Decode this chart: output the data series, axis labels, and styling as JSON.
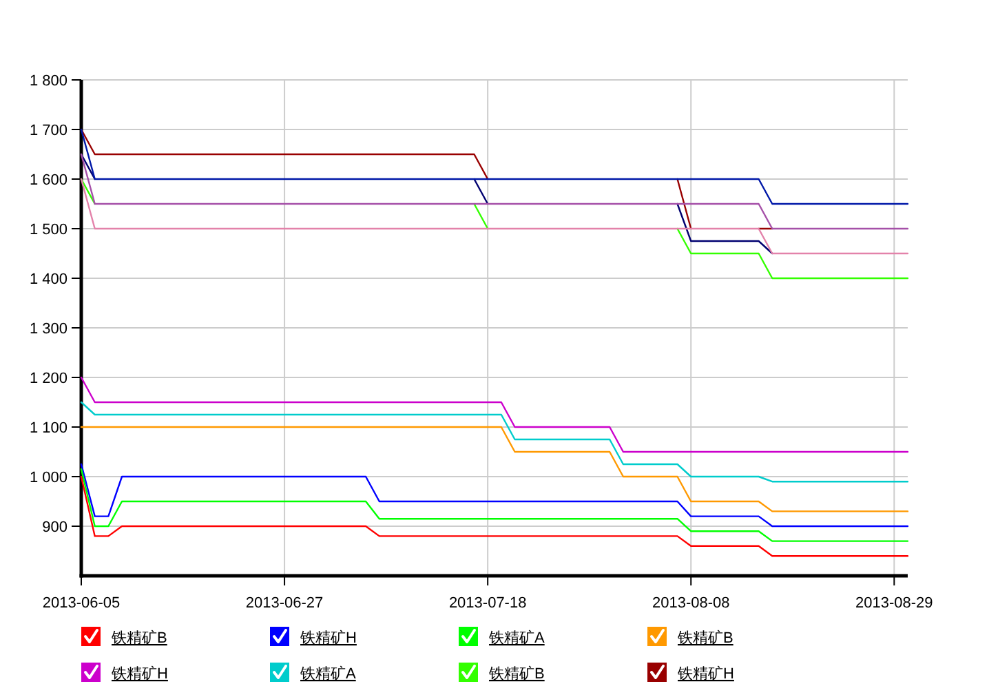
{
  "chart_data": {
    "type": "line",
    "legend": "bottom",
    "grid": true,
    "categories": [
      "2013-06-05",
      null,
      null,
      null,
      null,
      null,
      null,
      null,
      null,
      null,
      null,
      null,
      null,
      null,
      null,
      "2013-06-27",
      null,
      null,
      null,
      null,
      null,
      null,
      null,
      null,
      null,
      null,
      null,
      null,
      null,
      null,
      "2013-07-18",
      null,
      null,
      null,
      null,
      null,
      null,
      null,
      null,
      null,
      null,
      null,
      null,
      null,
      null,
      "2013-08-08",
      null,
      null,
      null,
      null,
      null,
      null,
      null,
      null,
      null,
      null,
      null,
      null,
      null,
      null,
      "2013-08-29",
      null
    ],
    "ylim": [
      800,
      1800
    ],
    "yticks": [
      900,
      {
        "value": 1000,
        "label": "1 000"
      },
      {
        "value": 1100,
        "label": "1 100"
      },
      {
        "value": 1200,
        "label": "1 200"
      },
      {
        "value": 1300,
        "label": "1 300"
      },
      {
        "value": 1400,
        "label": "1 400"
      },
      {
        "value": 1500,
        "label": "1 500"
      },
      {
        "value": 1600,
        "label": "1 600"
      },
      {
        "value": 1700,
        "label": "1 700"
      },
      {
        "value": 1800,
        "label": "1 800"
      }
    ],
    "series": [
      {
        "name": "铁精矿B",
        "color": "#ff0000",
        "values": [
          1000,
          880,
          880,
          900,
          900,
          900,
          900,
          900,
          900,
          900,
          900,
          900,
          900,
          900,
          900,
          900,
          900,
          900,
          900,
          900,
          900,
          900,
          880,
          880,
          880,
          880,
          880,
          880,
          880,
          880,
          880,
          880,
          880,
          880,
          880,
          880,
          880,
          880,
          880,
          880,
          880,
          880,
          880,
          880,
          880,
          860,
          860,
          860,
          860,
          860,
          860,
          840,
          840,
          840,
          840,
          840,
          840,
          840,
          840,
          840,
          840,
          840
        ]
      },
      {
        "name": "铁精矿H",
        "color": "#0000ff",
        "values": [
          1025,
          920,
          920,
          1000,
          1000,
          1000,
          1000,
          1000,
          1000,
          1000,
          1000,
          1000,
          1000,
          1000,
          1000,
          1000,
          1000,
          1000,
          1000,
          1000,
          1000,
          1000,
          950,
          950,
          950,
          950,
          950,
          950,
          950,
          950,
          950,
          950,
          950,
          950,
          950,
          950,
          950,
          950,
          950,
          950,
          950,
          950,
          950,
          950,
          950,
          920,
          920,
          920,
          920,
          920,
          920,
          900,
          900,
          900,
          900,
          900,
          900,
          900,
          900,
          900,
          900,
          900
        ]
      },
      {
        "name": "铁精矿A",
        "color": "#00ff00",
        "values": [
          1015,
          900,
          900,
          950,
          950,
          950,
          950,
          950,
          950,
          950,
          950,
          950,
          950,
          950,
          950,
          950,
          950,
          950,
          950,
          950,
          950,
          950,
          915,
          915,
          915,
          915,
          915,
          915,
          915,
          915,
          915,
          915,
          915,
          915,
          915,
          915,
          915,
          915,
          915,
          915,
          915,
          915,
          915,
          915,
          915,
          890,
          890,
          890,
          890,
          890,
          890,
          870,
          870,
          870,
          870,
          870,
          870,
          870,
          870,
          870,
          870,
          870
        ]
      },
      {
        "name": "铁精矿B",
        "color": "#ff9900",
        "values": [
          1100,
          1100,
          1100,
          1100,
          1100,
          1100,
          1100,
          1100,
          1100,
          1100,
          1100,
          1100,
          1100,
          1100,
          1100,
          1100,
          1100,
          1100,
          1100,
          1100,
          1100,
          1100,
          1100,
          1100,
          1100,
          1100,
          1100,
          1100,
          1100,
          1100,
          1100,
          1100,
          1050,
          1050,
          1050,
          1050,
          1050,
          1050,
          1050,
          1050,
          1000,
          1000,
          1000,
          1000,
          1000,
          950,
          950,
          950,
          950,
          950,
          950,
          930,
          930,
          930,
          930,
          930,
          930,
          930,
          930,
          930,
          930,
          930
        ]
      },
      {
        "name": "铁精矿H",
        "color": "#cc00cc",
        "values": [
          1200,
          1150,
          1150,
          1150,
          1150,
          1150,
          1150,
          1150,
          1150,
          1150,
          1150,
          1150,
          1150,
          1150,
          1150,
          1150,
          1150,
          1150,
          1150,
          1150,
          1150,
          1150,
          1150,
          1150,
          1150,
          1150,
          1150,
          1150,
          1150,
          1150,
          1150,
          1150,
          1100,
          1100,
          1100,
          1100,
          1100,
          1100,
          1100,
          1100,
          1050,
          1050,
          1050,
          1050,
          1050,
          1050,
          1050,
          1050,
          1050,
          1050,
          1050,
          1050,
          1050,
          1050,
          1050,
          1050,
          1050,
          1050,
          1050,
          1050,
          1050,
          1050
        ]
      },
      {
        "name": "铁精矿A",
        "color": "#00cccc",
        "values": [
          1150,
          1125,
          1125,
          1125,
          1125,
          1125,
          1125,
          1125,
          1125,
          1125,
          1125,
          1125,
          1125,
          1125,
          1125,
          1125,
          1125,
          1125,
          1125,
          1125,
          1125,
          1125,
          1125,
          1125,
          1125,
          1125,
          1125,
          1125,
          1125,
          1125,
          1125,
          1125,
          1075,
          1075,
          1075,
          1075,
          1075,
          1075,
          1075,
          1075,
          1025,
          1025,
          1025,
          1025,
          1025,
          1000,
          1000,
          1000,
          1000,
          1000,
          1000,
          990,
          990,
          990,
          990,
          990,
          990,
          990,
          990,
          990,
          990,
          990
        ]
      },
      {
        "name": "铁精矿B",
        "color": "#33ff00",
        "values": [
          1600,
          1550,
          null,
          null,
          null,
          null,
          null,
          null,
          null,
          null,
          null,
          null,
          null,
          null,
          null,
          null,
          null,
          null,
          null,
          null,
          null,
          null,
          null,
          null,
          null,
          null,
          null,
          null,
          null,
          1550,
          1500,
          null,
          null,
          null,
          null,
          null,
          null,
          null,
          null,
          null,
          null,
          null,
          null,
          null,
          1500,
          1450,
          1450,
          1450,
          1450,
          1450,
          1450,
          1400,
          1400,
          1400,
          1400,
          1400,
          1400,
          1400,
          1400,
          1400,
          1400,
          1400
        ]
      },
      {
        "name": "铁精矿H",
        "color": "#990000",
        "values": [
          1700,
          1650,
          1650,
          1650,
          1650,
          1650,
          1650,
          1650,
          1650,
          1650,
          1650,
          1650,
          1650,
          1650,
          1650,
          1650,
          1650,
          1650,
          1650,
          1650,
          1650,
          1650,
          1650,
          1650,
          1650,
          1650,
          1650,
          1650,
          1650,
          1650,
          1600,
          null,
          null,
          null,
          null,
          null,
          null,
          null,
          null,
          null,
          null,
          null,
          null,
          null,
          1600,
          1500,
          null,
          null,
          null,
          null,
          1500,
          1500,
          null,
          null,
          null,
          null,
          null,
          null,
          null,
          null,
          null,
          null
        ]
      },
      {
        "color": "#000070",
        "values": [
          1650,
          1600,
          null,
          null,
          null,
          null,
          null,
          null,
          null,
          null,
          null,
          null,
          null,
          null,
          null,
          null,
          null,
          null,
          null,
          null,
          null,
          null,
          null,
          null,
          null,
          null,
          null,
          null,
          null,
          1600,
          1550,
          null,
          null,
          null,
          null,
          null,
          null,
          null,
          null,
          null,
          null,
          null,
          null,
          null,
          1550,
          1475,
          1475,
          1475,
          1475,
          1475,
          1475,
          1450,
          null,
          null,
          null,
          null,
          null,
          null,
          null,
          null,
          null,
          null
        ]
      },
      {
        "color": "#0018a8",
        "values": [
          1700,
          1600,
          1600,
          1600,
          1600,
          1600,
          1600,
          1600,
          1600,
          1600,
          1600,
          1600,
          1600,
          1600,
          1600,
          1600,
          1600,
          1600,
          1600,
          1600,
          1600,
          1600,
          1600,
          1600,
          1600,
          1600,
          1600,
          1600,
          1600,
          1600,
          1600,
          1600,
          1600,
          1600,
          1600,
          1600,
          1600,
          1600,
          1600,
          1600,
          1600,
          1600,
          1600,
          1600,
          1600,
          1600,
          1600,
          1600,
          1600,
          1600,
          1600,
          1550,
          1550,
          1550,
          1550,
          1550,
          1550,
          1550,
          1550,
          1550,
          1550,
          1550
        ]
      },
      {
        "color": "#a550a8",
        "values": [
          1650,
          1550,
          1550,
          1550,
          1550,
          1550,
          1550,
          1550,
          1550,
          1550,
          1550,
          1550,
          1550,
          1550,
          1550,
          1550,
          1550,
          1550,
          1550,
          1550,
          1550,
          1550,
          1550,
          1550,
          1550,
          1550,
          1550,
          1550,
          1550,
          1550,
          1550,
          1550,
          1550,
          1550,
          1550,
          1550,
          1550,
          1550,
          1550,
          1550,
          1550,
          1550,
          1550,
          1550,
          1550,
          1550,
          1550,
          1550,
          1550,
          1550,
          1550,
          1500,
          1500,
          1500,
          1500,
          1500,
          1500,
          1500,
          1500,
          1500,
          1500,
          1500
        ]
      },
      {
        "color": "#e382aa",
        "values": [
          1600,
          1500,
          1500,
          1500,
          1500,
          1500,
          1500,
          1500,
          1500,
          1500,
          1500,
          1500,
          1500,
          1500,
          1500,
          1500,
          1500,
          1500,
          1500,
          1500,
          1500,
          1500,
          1500,
          1500,
          1500,
          1500,
          1500,
          1500,
          1500,
          1500,
          1500,
          1500,
          1500,
          1500,
          1500,
          1500,
          1500,
          1500,
          1500,
          1500,
          1500,
          1500,
          1500,
          1500,
          1500,
          1500,
          1500,
          1500,
          1500,
          1500,
          1500,
          1450,
          1450,
          1450,
          1450,
          1450,
          1450,
          1450,
          1450,
          1450,
          1450,
          1450
        ]
      }
    ]
  }
}
